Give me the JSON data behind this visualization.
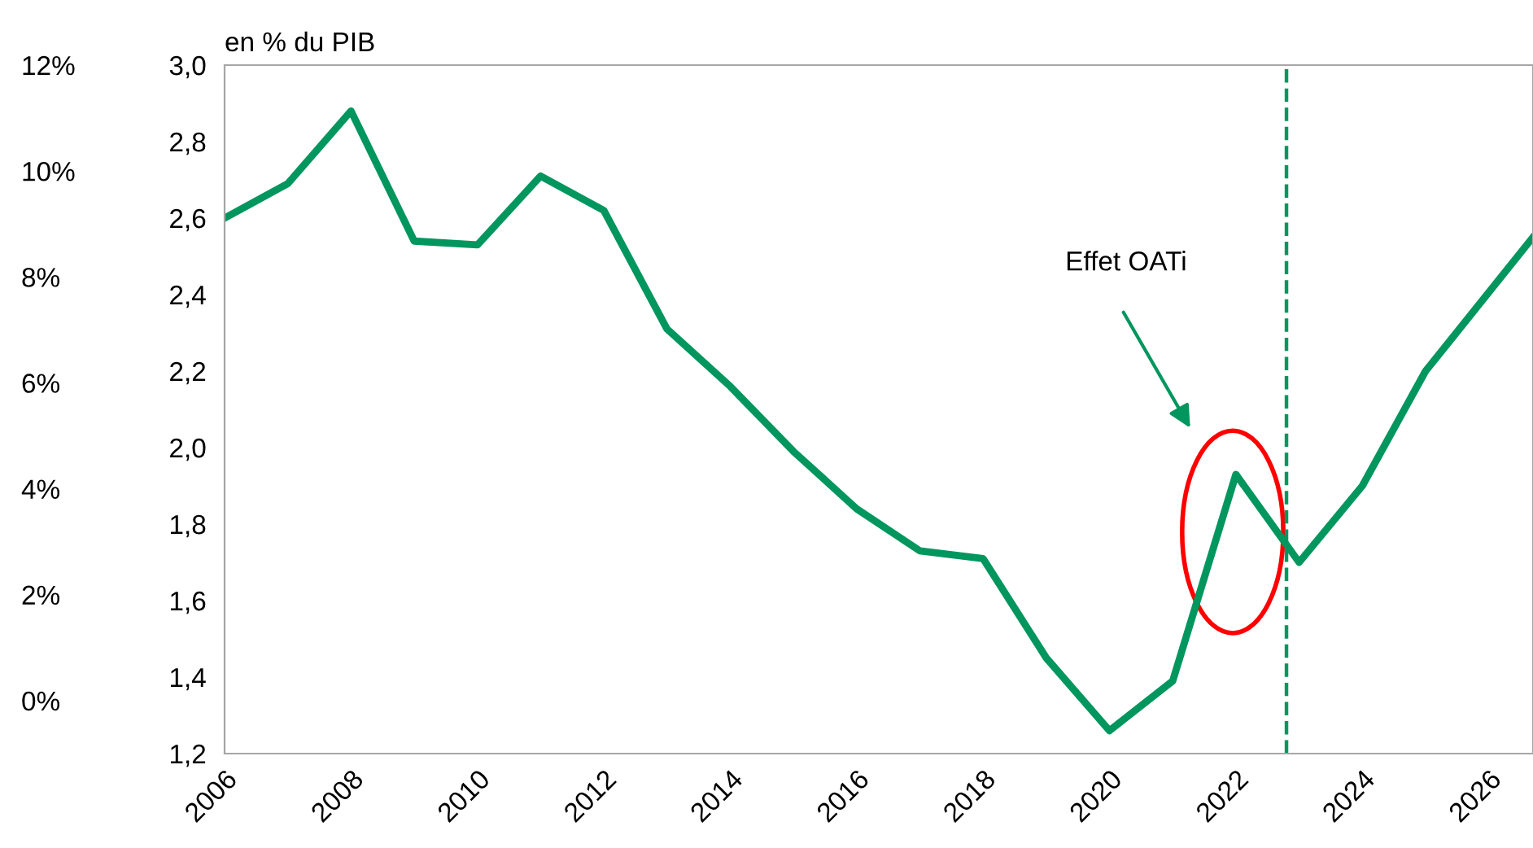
{
  "chart_data": {
    "type": "line",
    "ylabel": "en % du PIB",
    "x": [
      2006,
      2007,
      2008,
      2009,
      2010,
      2011,
      2012,
      2013,
      2014,
      2015,
      2016,
      2017,
      2018,
      2019,
      2020,
      2021,
      2022,
      2023,
      2024,
      2025,
      2026.7
    ],
    "series": [
      {
        "color": "#00965e",
        "values": [
          2.6,
          2.69,
          2.88,
          2.54,
          2.53,
          2.71,
          2.62,
          2.31,
          2.16,
          1.99,
          1.84,
          1.73,
          1.71,
          1.45,
          1.26,
          1.39,
          1.93,
          1.7,
          1.9,
          2.2,
          2.55
        ]
      }
    ],
    "xlim": [
      2006,
      2026.7
    ],
    "xticks": [
      2006,
      2008,
      2010,
      2012,
      2014,
      2016,
      2018,
      2020,
      2022,
      2024,
      2026
    ],
    "ylim": [
      1.2,
      3.0
    ],
    "yticks": [
      {
        "value": 1.2,
        "label": "1,2"
      },
      {
        "value": 1.4,
        "label": "1,4"
      },
      {
        "value": 1.6,
        "label": "1,6"
      },
      {
        "value": 1.8,
        "label": "1,8"
      },
      {
        "value": 2.0,
        "label": "2,0"
      },
      {
        "value": 2.2,
        "label": "2,2"
      },
      {
        "value": 2.4,
        "label": "2,4"
      },
      {
        "value": 2.6,
        "label": "2,6"
      },
      {
        "value": 2.8,
        "label": "2,8"
      },
      {
        "value": 3.0,
        "label": "3,0"
      }
    ],
    "y2lim": [
      -1,
      12
    ],
    "y2ticks": [
      {
        "value": 0,
        "label": "0%"
      },
      {
        "value": 2,
        "label": "2%"
      },
      {
        "value": 4,
        "label": "4%"
      },
      {
        "value": 6,
        "label": "6%"
      },
      {
        "value": 8,
        "label": "8%"
      },
      {
        "value": 10,
        "label": "10%"
      },
      {
        "value": 12,
        "label": "12%"
      }
    ],
    "ref_lines": [
      {
        "axis": "x",
        "value": 2022.8,
        "color": "#00965e",
        "line_style": "dashed"
      }
    ],
    "annotations": [
      "Effet OATi"
    ],
    "grid": false,
    "legend": false,
    "marker": "none",
    "line_style": "solid"
  }
}
